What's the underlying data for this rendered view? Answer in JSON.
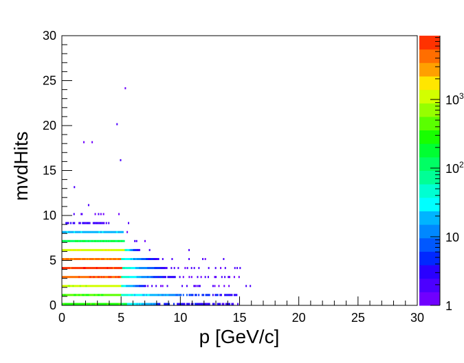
{
  "chart_data": {
    "type": "heatmap",
    "title": "",
    "xlabel": "p [GeV/c]",
    "ylabel": "mvdHits",
    "xlim": [
      0,
      30
    ],
    "ylim": [
      0,
      30
    ],
    "x_ticks": [
      "0",
      "5",
      "10",
      "15",
      "20",
      "25",
      "30"
    ],
    "y_ticks": [
      "0",
      "5",
      "10",
      "15",
      "20",
      "25",
      "30"
    ],
    "z_scale": "log",
    "zlim": [
      1,
      8500
    ],
    "z_ticks": [
      {
        "value": 1,
        "label": "1",
        "exp": ""
      },
      {
        "value": 10,
        "label": "10",
        "exp": ""
      },
      {
        "value": 100,
        "label": "10",
        "exp": "2"
      },
      {
        "value": 1000,
        "label": "10",
        "exp": "3"
      }
    ],
    "palette": [
      "#7000ff",
      "#4c00ff",
      "#2a00ff",
      "#0028ff",
      "#0058ff",
      "#0088ff",
      "#00b4ff",
      "#00ffff",
      "#00ffd2",
      "#00ff96",
      "#00ff64",
      "#00ff32",
      "#18ff00",
      "#5aff00",
      "#96ff00",
      "#d2ff00",
      "#ffe600",
      "#ffa000",
      "#ff6e00",
      "#ff3200",
      "#ff0000"
    ],
    "rows": [
      {
        "hits": 0,
        "segments": [
          [
            0,
            5,
            300,
            300
          ],
          [
            5,
            5.5,
            150,
            150
          ],
          [
            5.5,
            8,
            30,
            15
          ],
          [
            8,
            15,
            5,
            2
          ]
        ],
        "points": []
      },
      {
        "hits": 1,
        "segments": [
          [
            0,
            5,
            400,
            400
          ],
          [
            5,
            10,
            40,
            10
          ],
          [
            10,
            15,
            6,
            3
          ]
        ],
        "points": []
      },
      {
        "hits": 2,
        "segments": [
          [
            0,
            5,
            1100,
            1100
          ],
          [
            5,
            7.1,
            40,
            3
          ]
        ],
        "points": [
          7.2,
          7.55,
          7.9,
          8.3,
          8.45,
          8.85,
          10.1,
          10.5,
          11.1,
          11.2,
          11.35,
          11.5,
          11.6,
          12.7,
          12.85,
          13.2,
          13.65,
          14.05,
          15.5,
          15.85
        ]
      },
      {
        "hits": 3,
        "segments": [
          [
            0,
            5,
            5000,
            5000
          ],
          [
            5,
            8.6,
            60,
            3
          ],
          [
            8.6,
            10,
            3,
            2
          ]
        ],
        "points": [
          10.2,
          10.7,
          10.9,
          11.4,
          11.7,
          12.05,
          12.3,
          12.85,
          12.95,
          13.45,
          13.7,
          14.0,
          14.1,
          14.5,
          14.9
        ]
      },
      {
        "hits": 4,
        "segments": [
          [
            0,
            5.1,
            7000,
            7000
          ],
          [
            5.1,
            8.9,
            60,
            2
          ]
        ],
        "points": [
          9.19,
          9.44,
          9.77,
          10.35,
          10.54,
          10.89,
          11.12,
          11.51,
          12.34,
          12.92,
          13.35,
          13.74,
          14.55,
          14.74,
          14.99
        ]
      },
      {
        "hits": 5,
        "segments": [
          [
            0,
            5,
            4000,
            4000
          ],
          [
            5,
            8.2,
            50,
            2
          ]
        ],
        "points": [
          8.46,
          9.25,
          10.68,
          11.84,
          12.05,
          13.6
        ]
      },
      {
        "hits": 6,
        "segments": [
          [
            0,
            5.3,
            1200,
            1200
          ],
          [
            5.3,
            6.56,
            40,
            2
          ]
        ],
        "points": [
          7.35,
          10.68
        ]
      },
      {
        "hits": 7,
        "segments": [
          [
            0,
            5.3,
            150,
            150
          ]
        ],
        "points": [
          6.1,
          6.25,
          6.96
        ]
      },
      {
        "hits": 8,
        "segments": [
          [
            0,
            5.2,
            20,
            20
          ]
        ],
        "points": [
          5.46
        ]
      },
      {
        "hits": 9,
        "segments": [
          [
            0.3,
            4.0,
            3,
            2
          ]
        ],
        "points": [
          5.57
        ]
      },
      {
        "hits": 10,
        "segments": [],
        "points": [
          0.97,
          1.58,
          1.64,
          2.76,
          3.04,
          3.24,
          3.46,
          4.76
        ]
      },
      {
        "hits": 11,
        "segments": [],
        "points": [
          2.2
        ]
      },
      {
        "hits": 13,
        "segments": [],
        "points": [
          1.0
        ]
      },
      {
        "hits": 16,
        "segments": [],
        "points": [
          4.9
        ]
      },
      {
        "hits": 18,
        "segments": [],
        "points": [
          1.8,
          2.5
        ]
      },
      {
        "hits": 20,
        "segments": [],
        "points": [
          4.6
        ]
      },
      {
        "hits": 24,
        "segments": [],
        "points": [
          5.3
        ]
      }
    ]
  }
}
